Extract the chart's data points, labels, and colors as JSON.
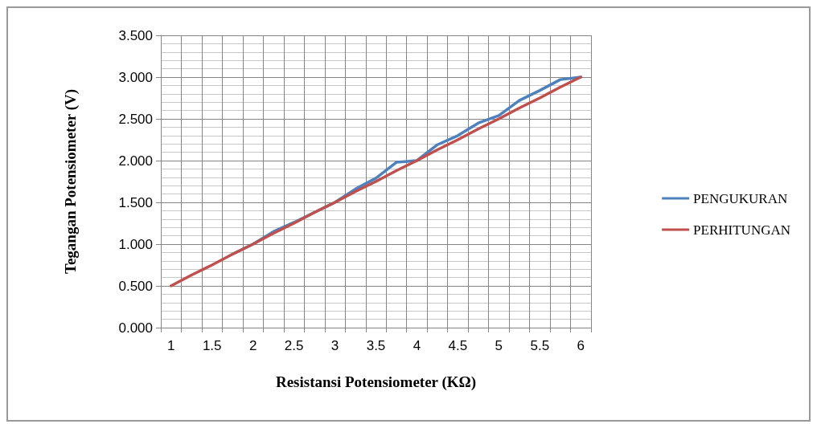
{
  "chart_data": {
    "type": "line",
    "xlabel": "Resistansi Potensiometer (KΩ)",
    "ylabel": "Tegangan Potensiometer (V)",
    "categories": [
      "1",
      null,
      "1.5",
      null,
      "2",
      null,
      "2.5",
      null,
      "3",
      null,
      "3.5",
      null,
      "4",
      null,
      "4.5",
      null,
      "5",
      null,
      "5.5",
      null,
      "6"
    ],
    "series": [
      {
        "name": "PENGUKURAN",
        "color": "#4f81bd",
        "values": [
          null,
          null,
          null,
          0.88,
          1.0,
          1.15,
          1.26,
          1.38,
          1.5,
          1.66,
          1.79,
          1.98,
          2.0,
          2.19,
          2.3,
          2.45,
          2.54,
          2.72,
          2.84,
          2.97,
          3.0
        ]
      },
      {
        "name": "PERHITUNGAN",
        "color": "#c0504d",
        "values": [
          0.5,
          0.63,
          0.75,
          0.88,
          1.0,
          1.13,
          1.25,
          1.38,
          1.5,
          1.63,
          1.75,
          1.88,
          2.0,
          2.13,
          2.25,
          2.38,
          2.5,
          2.63,
          2.75,
          2.88,
          3.0
        ]
      }
    ],
    "ylim": [
      0,
      3.5
    ],
    "yticks": [
      {
        "value": 0,
        "label": "0.000"
      },
      {
        "value": 0.5,
        "label": "0.500"
      },
      {
        "value": 1,
        "label": "1.000"
      },
      {
        "value": 1.5,
        "label": "1.500"
      },
      {
        "value": 2,
        "label": "2.000"
      },
      {
        "value": 2.5,
        "label": "2.500"
      },
      {
        "value": 3,
        "label": "3.000"
      },
      {
        "value": 3.5,
        "label": "3.500"
      }
    ],
    "grid": true,
    "legend": "right",
    "marker": "none",
    "line_style": "solid"
  }
}
